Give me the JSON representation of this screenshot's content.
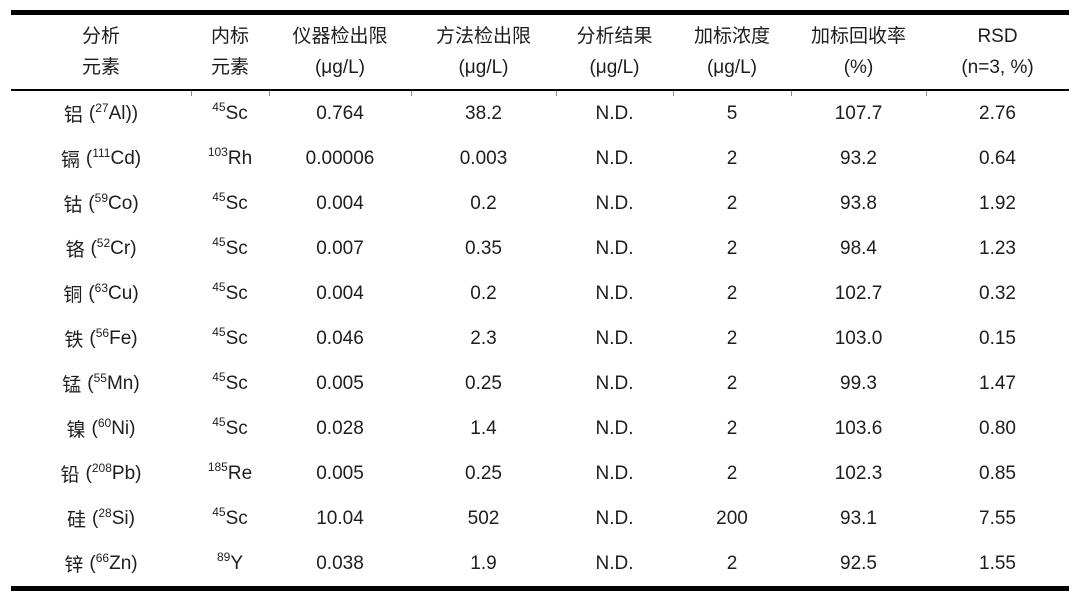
{
  "table": {
    "headers": [
      {
        "line1": "分析",
        "line2": "元素"
      },
      {
        "line1": "内标",
        "line2": "元素"
      },
      {
        "line1": "仪器检出限",
        "line2": "(μg/L)"
      },
      {
        "line1": "方法检出限",
        "line2": "(μg/L)"
      },
      {
        "line1": "分析结果",
        "line2": "(μg/L)"
      },
      {
        "line1": "加标浓度",
        "line2": "(μg/L)"
      },
      {
        "line1": "加标回收率",
        "line2": "(%)"
      },
      {
        "line1": "RSD",
        "line2": "(n=3, %)"
      }
    ],
    "rows": [
      {
        "el_name": "铝",
        "el_open": "(",
        "el_mass": "27",
        "el_symbol": "Al",
        "el_close": "))",
        "istd_mass": "45",
        "istd_symbol": "Sc",
        "instrument_dl": "0.764",
        "method_dl": "38.2",
        "result": "N.D.",
        "spike_conc": "5",
        "recovery": "107.7",
        "rsd": "2.76"
      },
      {
        "el_name": "镉",
        "el_open": "(",
        "el_mass": "111",
        "el_symbol": "Cd",
        "el_close": ")",
        "istd_mass": "103",
        "istd_symbol": "Rh",
        "instrument_dl": "0.00006",
        "method_dl": "0.003",
        "result": "N.D.",
        "spike_conc": "2",
        "recovery": "93.2",
        "rsd": "0.64"
      },
      {
        "el_name": "钴",
        "el_open": "(",
        "el_mass": "59",
        "el_symbol": "Co",
        "el_close": ")",
        "istd_mass": "45",
        "istd_symbol": "Sc",
        "instrument_dl": "0.004",
        "method_dl": "0.2",
        "result": "N.D.",
        "spike_conc": "2",
        "recovery": "93.8",
        "rsd": "1.92"
      },
      {
        "el_name": "铬",
        "el_open": "(",
        "el_mass": "52",
        "el_symbol": "Cr",
        "el_close": ")",
        "istd_mass": "45",
        "istd_symbol": "Sc",
        "instrument_dl": "0.007",
        "method_dl": "0.35",
        "result": "N.D.",
        "spike_conc": "2",
        "recovery": "98.4",
        "rsd": "1.23"
      },
      {
        "el_name": "铜",
        "el_open": "(",
        "el_mass": "63",
        "el_symbol": "Cu",
        "el_close": ")",
        "istd_mass": "45",
        "istd_symbol": "Sc",
        "instrument_dl": "0.004",
        "method_dl": "0.2",
        "result": "N.D.",
        "spike_conc": "2",
        "recovery": "102.7",
        "rsd": "0.32"
      },
      {
        "el_name": "铁",
        "el_open": "(",
        "el_mass": "56",
        "el_symbol": "Fe",
        "el_close": ")",
        "istd_mass": "45",
        "istd_symbol": "Sc",
        "instrument_dl": "0.046",
        "method_dl": "2.3",
        "result": "N.D.",
        "spike_conc": "2",
        "recovery": "103.0",
        "rsd": "0.15"
      },
      {
        "el_name": "锰",
        "el_open": "(",
        "el_mass": "55",
        "el_symbol": "Mn",
        "el_close": ")",
        "istd_mass": "45",
        "istd_symbol": "Sc",
        "instrument_dl": "0.005",
        "method_dl": "0.25",
        "result": "N.D.",
        "spike_conc": "2",
        "recovery": "99.3",
        "rsd": "1.47"
      },
      {
        "el_name": "镍",
        "el_open": "(",
        "el_mass": "60",
        "el_symbol": "Ni",
        "el_close": ")",
        "istd_mass": "45",
        "istd_symbol": "Sc",
        "instrument_dl": "0.028",
        "method_dl": "1.4",
        "result": "N.D.",
        "spike_conc": "2",
        "recovery": "103.6",
        "rsd": "0.80"
      },
      {
        "el_name": "铅",
        "el_open": "(",
        "el_mass": "208",
        "el_symbol": "Pb",
        "el_close": ")",
        "istd_mass": "185",
        "istd_symbol": "Re",
        "instrument_dl": "0.005",
        "method_dl": "0.25",
        "result": "N.D.",
        "spike_conc": "2",
        "recovery": "102.3",
        "rsd": "0.85"
      },
      {
        "el_name": "硅",
        "el_open": "(",
        "el_mass": "28",
        "el_symbol": "Si",
        "el_close": ")",
        "istd_mass": "45",
        "istd_symbol": "Sc",
        "instrument_dl": "10.04",
        "method_dl": "502",
        "result": "N.D.",
        "spike_conc": "200",
        "recovery": "93.1",
        "rsd": "7.55"
      },
      {
        "el_name": "锌",
        "el_open": "(",
        "el_mass": "66",
        "el_symbol": "Zn",
        "el_close": ")",
        "istd_mass": "89",
        "istd_symbol": "Y",
        "instrument_dl": "0.038",
        "method_dl": "1.9",
        "result": "N.D.",
        "spike_conc": "2",
        "recovery": "92.5",
        "rsd": "1.55"
      }
    ]
  }
}
